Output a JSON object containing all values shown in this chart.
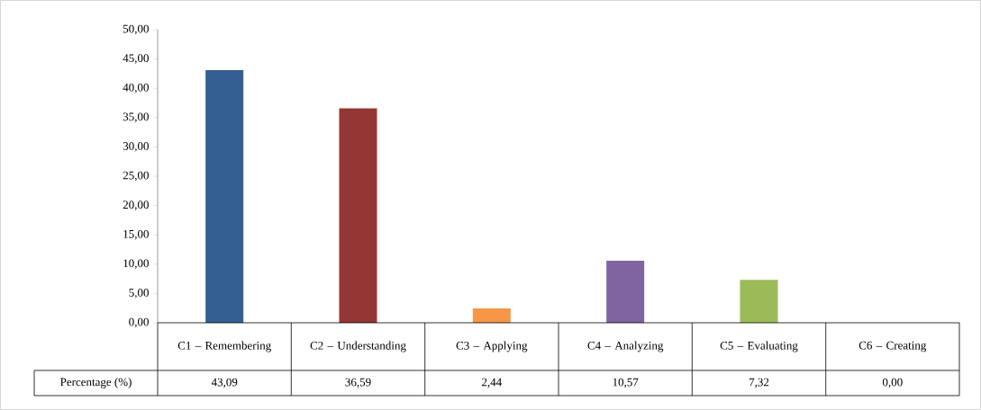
{
  "chart_data": {
    "type": "bar",
    "categories": [
      "C1 – Remembering",
      "C2 – Understanding",
      "C3 – Applying",
      "C4 – Analyzing",
      "C5 – Evaluating",
      "C6 – Creating"
    ],
    "series": [
      {
        "name": "Percentage (%)",
        "colors": [
          "#335f91",
          "#943634",
          "#f79646",
          "#8064a2",
          "#9bbb59",
          "#4bacc6"
        ],
        "values": [
          43.09,
          36.59,
          2.44,
          10.57,
          7.32,
          0.0
        ],
        "value_labels": [
          "43,09",
          "36,59",
          "2,44",
          "10,57",
          "7,32",
          "0,00"
        ]
      }
    ],
    "ylim": [
      0,
      50
    ],
    "yticks": [
      {
        "value": 0,
        "label": "0,00"
      },
      {
        "value": 5,
        "label": "5,00"
      },
      {
        "value": 10,
        "label": "10,00"
      },
      {
        "value": 15,
        "label": "15,00"
      },
      {
        "value": 20,
        "label": "20,00"
      },
      {
        "value": 25,
        "label": "25,00"
      },
      {
        "value": 30,
        "label": "30,00"
      },
      {
        "value": 35,
        "label": "35,00"
      },
      {
        "value": 40,
        "label": "40,00"
      },
      {
        "value": 45,
        "label": "45,00"
      },
      {
        "value": 50,
        "label": "50,00"
      }
    ],
    "grid": false
  }
}
